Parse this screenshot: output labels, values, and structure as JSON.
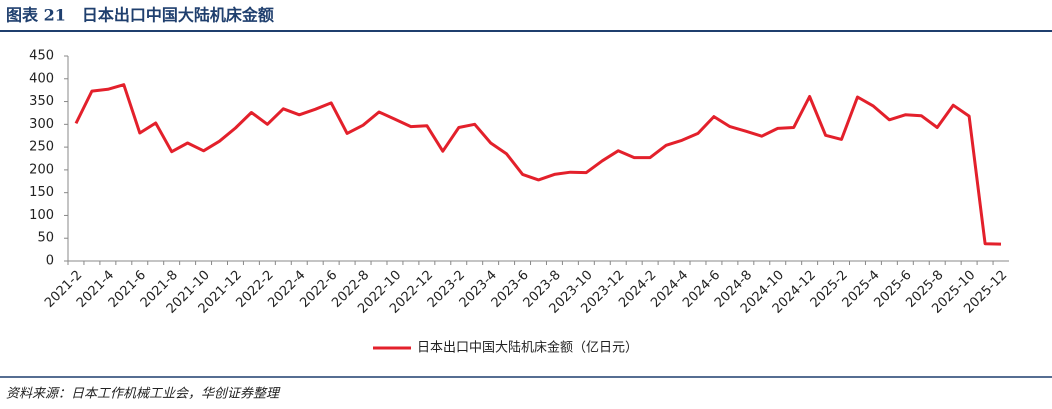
{
  "chart_data": {
    "type": "line",
    "title": "图表 21　日本出口中国大陆机床金额",
    "source": "资料来源：日本工作机械工业会，华创证券整理",
    "categories": [
      "2021-2",
      null,
      "2021-4",
      null,
      "2021-6",
      null,
      "2021-8",
      null,
      "2021-10",
      null,
      "2021-12",
      null,
      "2022-2",
      null,
      "2022-4",
      null,
      "2022-6",
      null,
      "2022-8",
      null,
      "2022-10",
      null,
      "2022-12",
      null,
      "2023-2",
      null,
      "2023-4",
      null,
      "2023-6",
      null,
      "2023-8",
      null,
      "2023-10",
      null,
      "2023-12",
      null,
      "2024-2",
      null,
      "2024-4",
      null,
      "2024-6",
      null,
      "2024-8",
      null,
      "2024-10",
      null,
      "2024-12",
      null,
      "2025-2",
      null,
      "2025-4",
      null,
      "2025-6",
      null,
      "2025-8",
      null,
      "2025-10",
      null,
      "2025-12"
    ],
    "series": [
      {
        "name": "日本出口中国大陆机床金额（亿日元）",
        "color": "#e3202b",
        "values": [
          302,
          373,
          377,
          387,
          281,
          303,
          240,
          259,
          242,
          263,
          292,
          326,
          300,
          334,
          321,
          333,
          347,
          280,
          298,
          327,
          311,
          295,
          297,
          241,
          293,
          300,
          259,
          235,
          190,
          178,
          190,
          195,
          194,
          220,
          242,
          227,
          227,
          254,
          265,
          280,
          317,
          295,
          285,
          274,
          291,
          293,
          361,
          276,
          267,
          360,
          340,
          310,
          321,
          319,
          293,
          342,
          318,
          38,
          37
        ]
      }
    ],
    "ylim": [
      0,
      450
    ],
    "yticks": [
      0,
      50,
      100,
      150,
      200,
      250,
      300,
      350,
      400,
      450
    ],
    "grid": false
  }
}
